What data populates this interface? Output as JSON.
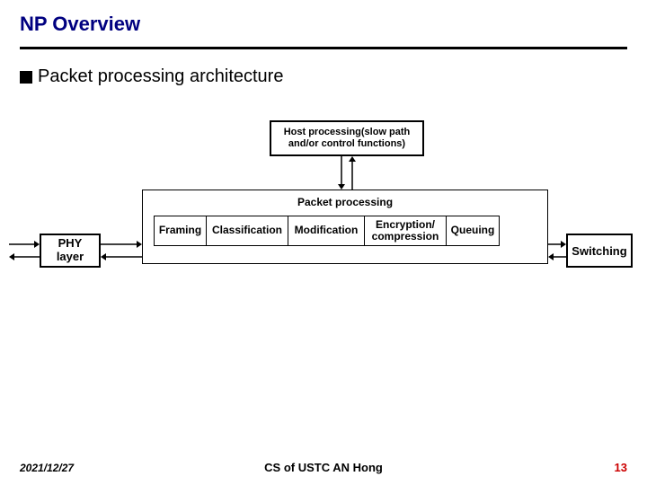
{
  "title": "NP Overview",
  "title_color": "#000080",
  "bullet": "Packet processing architecture",
  "host_box": {
    "line1": "Host processing(slow path",
    "line2": "and/or control functions)",
    "border_color": "#000000"
  },
  "packet_label": "Packet processing",
  "stages": [
    {
      "label": "Framing",
      "width": 59
    },
    {
      "label": "Classification",
      "width": 92
    },
    {
      "label": "Modification",
      "width": 86
    },
    {
      "label": "Encryption/\ncompression",
      "width": 92
    },
    {
      "label": "Queuing",
      "width": 60
    }
  ],
  "phy": "PHY\nlayer",
  "switching": "Switching",
  "footer": {
    "date": "2021/12/27",
    "center": "CS of USTC AN Hong",
    "page": "13",
    "page_color": "#cc0000"
  },
  "colors": {
    "background": "#ffffff",
    "text": "#000000",
    "rule": "#000000"
  }
}
